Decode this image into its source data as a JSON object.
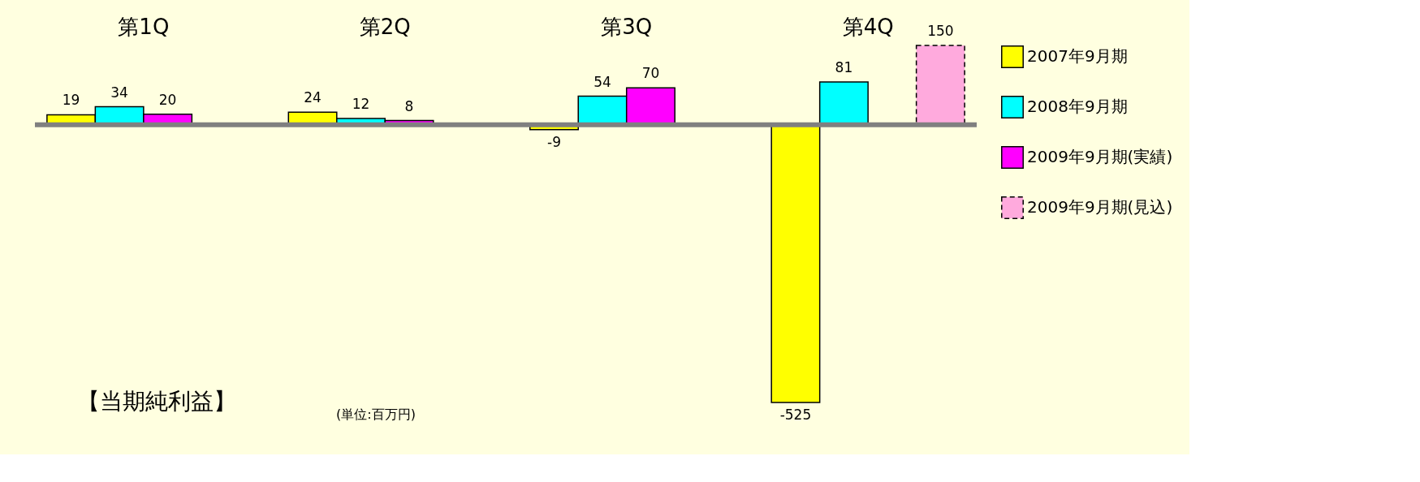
{
  "chart_data": {
    "type": "bar",
    "categories": [
      "第1Q",
      "第2Q",
      "第3Q",
      "第4Q"
    ],
    "series": [
      {
        "name": "2007年9月期",
        "color": "#ffff00",
        "values": [
          19,
          24,
          -9,
          -525
        ]
      },
      {
        "name": "2008年9月期",
        "color": "#00ffff",
        "values": [
          34,
          12,
          54,
          81
        ]
      },
      {
        "name": "2009年9月期(実績)",
        "color": "#ff00ff",
        "values": [
          20,
          8,
          70,
          null
        ]
      },
      {
        "name": "2009年9月期(見込)",
        "color": "#ffaadd",
        "line_style": "dashed",
        "values": [
          null,
          null,
          null,
          150
        ]
      }
    ],
    "tick_labels": "x",
    "data_labels": true,
    "legend": "right",
    "grid": false,
    "ref_lines": [
      {
        "axis": "y",
        "value": 0,
        "color": "#808080"
      }
    ],
    "annotations": [
      "【当期純利益】",
      "(単位:百万円)"
    ]
  }
}
